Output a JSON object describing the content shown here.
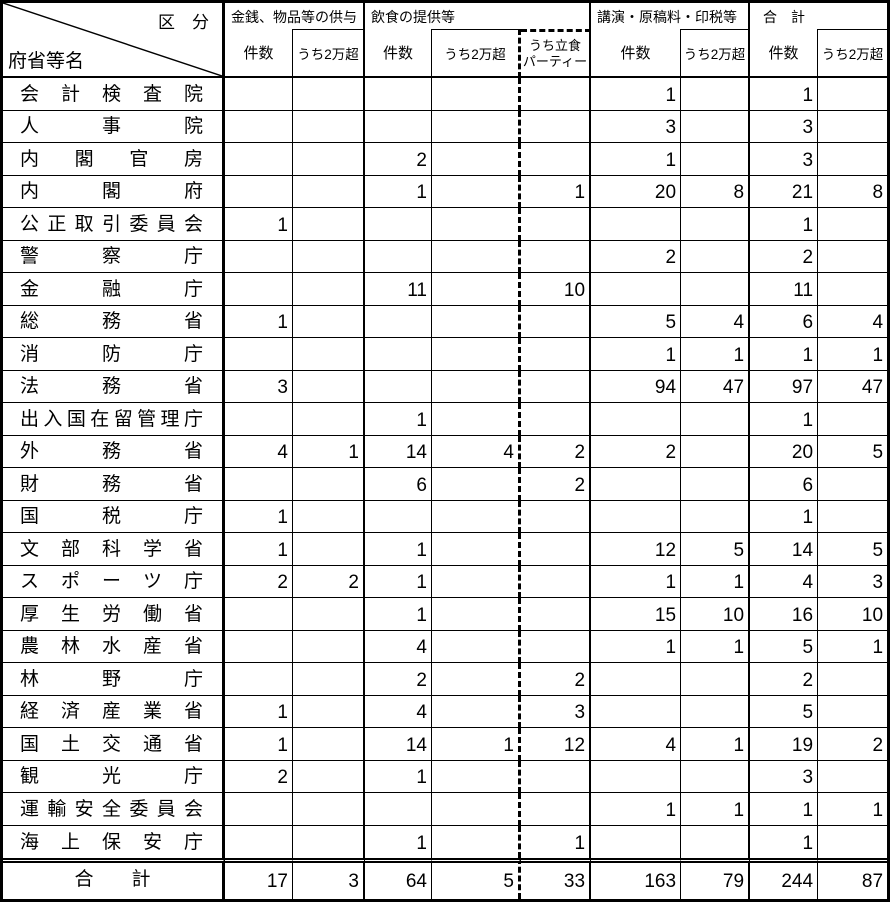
{
  "table": {
    "corner": {
      "category_label": "区　分",
      "rows_title": "府省等名"
    },
    "groups": [
      {
        "label": "金銭、物品等の供与",
        "sub": [
          "件数",
          "うち2万超"
        ]
      },
      {
        "label": "飲食の提供等",
        "sub": [
          "件数",
          "うち2万超",
          [
            "うち立食",
            "パーティー"
          ]
        ]
      },
      {
        "label": "講演・原稿料・印税等",
        "sub": [
          "件数",
          "うち2万超"
        ]
      },
      {
        "label": "合　計",
        "sub": [
          "件数",
          "うち2万超"
        ]
      }
    ],
    "columns": [
      "金銭件数",
      "金銭うち2万超",
      "飲食件数",
      "飲食うち2万超",
      "うち立食パーティー",
      "講演件数",
      "講演うち2万超",
      "合計件数",
      "合計うち2万超"
    ],
    "rows": [
      {
        "label": "会計検査院",
        "values": [
          "",
          "",
          "",
          "",
          "",
          "1",
          "",
          "1",
          ""
        ]
      },
      {
        "label": "人事院",
        "values": [
          "",
          "",
          "",
          "",
          "",
          "3",
          "",
          "3",
          ""
        ]
      },
      {
        "label": "内閣官房",
        "values": [
          "",
          "",
          "2",
          "",
          "",
          "1",
          "",
          "3",
          ""
        ]
      },
      {
        "label": "内閣府",
        "values": [
          "",
          "",
          "1",
          "",
          "1",
          "20",
          "8",
          "21",
          "8"
        ]
      },
      {
        "label": "公正取引委員会",
        "values": [
          "1",
          "",
          "",
          "",
          "",
          "",
          "",
          "1",
          ""
        ]
      },
      {
        "label": "警察庁",
        "values": [
          "",
          "",
          "",
          "",
          "",
          "2",
          "",
          "2",
          ""
        ]
      },
      {
        "label": "金融庁",
        "values": [
          "",
          "",
          "11",
          "",
          "10",
          "",
          "",
          "11",
          ""
        ]
      },
      {
        "label": "総務省",
        "values": [
          "1",
          "",
          "",
          "",
          "",
          "5",
          "4",
          "6",
          "4"
        ]
      },
      {
        "label": "消防庁",
        "values": [
          "",
          "",
          "",
          "",
          "",
          "1",
          "1",
          "1",
          "1"
        ]
      },
      {
        "label": "法務省",
        "values": [
          "3",
          "",
          "",
          "",
          "",
          "94",
          "47",
          "97",
          "47"
        ]
      },
      {
        "label": "出入国在留管理庁",
        "values": [
          "",
          "",
          "1",
          "",
          "",
          "",
          "",
          "1",
          ""
        ]
      },
      {
        "label": "外務省",
        "values": [
          "4",
          "1",
          "14",
          "4",
          "2",
          "2",
          "",
          "20",
          "5"
        ]
      },
      {
        "label": "財務省",
        "values": [
          "",
          "",
          "6",
          "",
          "2",
          "",
          "",
          "6",
          ""
        ]
      },
      {
        "label": "国税庁",
        "values": [
          "1",
          "",
          "",
          "",
          "",
          "",
          "",
          "1",
          ""
        ]
      },
      {
        "label": "文部科学省",
        "values": [
          "1",
          "",
          "1",
          "",
          "",
          "12",
          "5",
          "14",
          "5"
        ]
      },
      {
        "label": "スポーツ庁",
        "values": [
          "2",
          "2",
          "1",
          "",
          "",
          "1",
          "1",
          "4",
          "3"
        ]
      },
      {
        "label": "厚生労働省",
        "values": [
          "",
          "",
          "1",
          "",
          "",
          "15",
          "10",
          "16",
          "10"
        ]
      },
      {
        "label": "農林水産省",
        "values": [
          "",
          "",
          "4",
          "",
          "",
          "1",
          "1",
          "5",
          "1"
        ]
      },
      {
        "label": "林野庁",
        "values": [
          "",
          "",
          "2",
          "",
          "2",
          "",
          "",
          "2",
          ""
        ]
      },
      {
        "label": "経済産業省",
        "values": [
          "1",
          "",
          "4",
          "",
          "3",
          "",
          "",
          "5",
          ""
        ]
      },
      {
        "label": "国土交通省",
        "values": [
          "1",
          "",
          "14",
          "1",
          "12",
          "4",
          "1",
          "19",
          "2"
        ]
      },
      {
        "label": "観光庁",
        "values": [
          "2",
          "",
          "1",
          "",
          "",
          "",
          "",
          "3",
          ""
        ]
      },
      {
        "label": "運輸安全委員会",
        "values": [
          "",
          "",
          "",
          "",
          "",
          "1",
          "1",
          "1",
          "1"
        ]
      },
      {
        "label": "海上保安庁",
        "values": [
          "",
          "",
          "1",
          "",
          "1",
          "",
          "",
          "1",
          ""
        ]
      }
    ],
    "total": {
      "label": "合　　計",
      "values": [
        "17",
        "3",
        "64",
        "5",
        "33",
        "163",
        "79",
        "244",
        "87"
      ]
    }
  }
}
